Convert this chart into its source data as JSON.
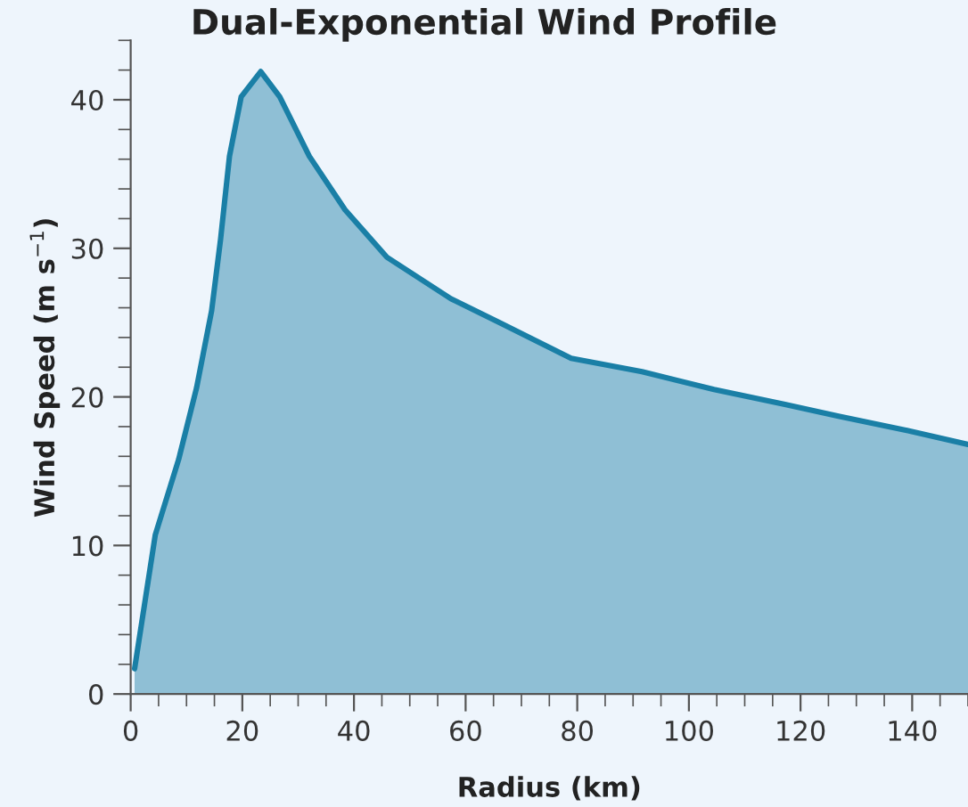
{
  "chart_data": {
    "type": "area",
    "title": "Dual-Exponential Wind Profile",
    "xlabel": "Radius (km)",
    "ylabel": "Wind Speed (m s$^{−1}$)",
    "series": [
      {
        "color": "#1a7fa6",
        "x": [
          0.7,
          4.4,
          8.6,
          11.8,
          14.5,
          16.1,
          17.7,
          19.8,
          23.3,
          26.7,
          32.0,
          38.4,
          45.9,
          57.4,
          66.1,
          78.9,
          91.6,
          104.5,
          117.2,
          126.8,
          139.6,
          150
        ],
        "values": [
          1.7,
          10.7,
          15.8,
          20.6,
          25.8,
          30.6,
          36.2,
          40.2,
          41.9,
          40.2,
          36.2,
          32.6,
          29.4,
          26.6,
          25.0,
          22.6,
          21.7,
          20.5,
          19.5,
          18.7,
          17.7,
          16.8
        ]
      }
    ],
    "xlim": [
      0,
      150
    ],
    "ylim": [
      0,
      44
    ],
    "xticks": [
      0,
      20,
      40,
      60,
      80,
      100,
      120,
      140
    ],
    "yticks": [
      0,
      10,
      20,
      30,
      40
    ],
    "grid": false,
    "legend": false
  }
}
